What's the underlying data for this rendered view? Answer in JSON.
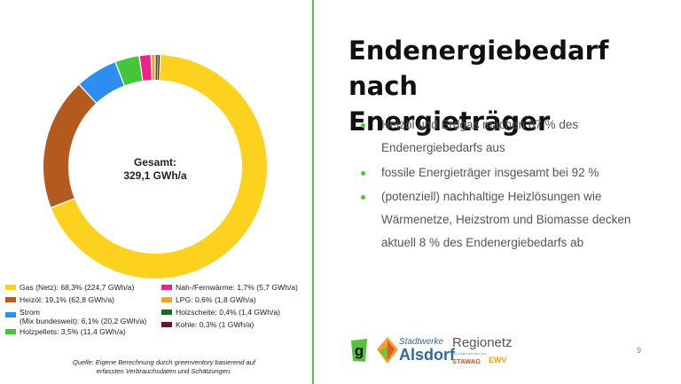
{
  "chart_data": {
    "type": "pie",
    "categories": [
      "Gas (Netz)",
      "Heizöl",
      "Strom (Mix bundesweit)",
      "Holzpellets",
      "Nah-/Fernwärme",
      "LPG",
      "Holzscheite",
      "Kohle"
    ],
    "values": [
      68.3,
      19.1,
      6.1,
      3.5,
      1.7,
      0.6,
      0.4,
      0.3
    ],
    "colors": [
      "#fcd21e",
      "#b45a1e",
      "#2e8ef0",
      "#45c53a",
      "#f0208c",
      "#f5a030",
      "#1c6b1f",
      "#6b1030"
    ],
    "center_label": [
      "Gesamt:",
      "329,1 GWh/a"
    ],
    "legend_placement": "bottom"
  },
  "legend": [
    {
      "label": "Gas (Netz): 68,3% (224,7 GWh/a)",
      "color": "#fcd21e"
    },
    {
      "label": "Heizöl: 19,1% (62,8 GWh/a)",
      "color": "#b45a1e"
    },
    {
      "label": "Strom",
      "label2": "(Mix bundesweit): 6,1% (20,2 GWh/a)",
      "color": "#2e8ef0"
    },
    {
      "label": "Holzpellets: 3,5% (11,4 GWh/a)",
      "color": "#45c53a"
    },
    {
      "label": "Nah-/Fernwärme: 1,7% (5,7 GWh/a)",
      "color": "#f0208c"
    },
    {
      "label": "LPG: 0,6% (1,8 GWh/a)",
      "color": "#f5a030"
    },
    {
      "label": "Holzscheite: 0,4% (1,4 GWh/a)",
      "color": "#1c6b1f"
    },
    {
      "label": "Kohle: 0,3% (1 GWh/a)",
      "color": "#6b1030"
    }
  ],
  "source": {
    "line1": "Quelle: Eigene Berechnung durch greenventory basierend auf",
    "line2": "erfassten Verbrauchsdaten und Schätzungen."
  },
  "slide": {
    "title_line1": "Endenergiebedarf nach",
    "title_line2": "Energieträger",
    "bullets": [
      {
        "line1": "Heizöl und Erdgas machen 87 % des",
        "line2": "Endenergiebedarfs aus"
      },
      {
        "line1": "fossile Energieträger insgesamt bei 92 %"
      },
      {
        "line1": "(potenziell) nachhaltige Heizlösungen wie",
        "line2": "Wärmenetze, Heizstrom und Biomasse decken",
        "line3": "aktuell 8 % des Endenergiebedarfs ab"
      }
    ],
    "page_number": "9",
    "accent_color": "#56c13c"
  },
  "logos": {
    "g_logo": "g",
    "stadtwerke_line1": "Stadtwerke",
    "stadtwerke_line2": "Alsdorf",
    "regionetz": "Regionetz",
    "regionetz_small": "Ein Unternehmen von",
    "stawag": "STAWAG",
    "ewv": "EWV"
  }
}
